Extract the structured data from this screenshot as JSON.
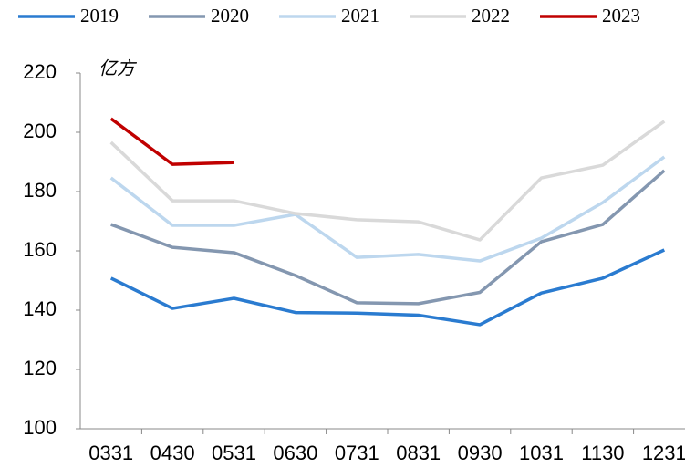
{
  "chart_data": {
    "type": "line",
    "y_label": "亿方",
    "categories": [
      "0331",
      "0430",
      "0531",
      "0630",
      "0731",
      "0831",
      "0930",
      "1031",
      "1130",
      "1231"
    ],
    "series": [
      {
        "name": "2019",
        "color": "#2a7bd0",
        "values": [
          150.8,
          140.6,
          144,
          139.2,
          139,
          138.3,
          135.1,
          145.8,
          150.8,
          160.3
        ]
      },
      {
        "name": "2020",
        "color": "#8497b0",
        "values": [
          168.9,
          161.2,
          159.4,
          151.7,
          142.5,
          142.2,
          146,
          163.1,
          168.9,
          187.1
        ]
      },
      {
        "name": "2021",
        "color": "#bdd7ee",
        "values": [
          184.6,
          168.6,
          168.6,
          172.3,
          157.8,
          158.8,
          156.6,
          164.3,
          176.3,
          191.7
        ]
      },
      {
        "name": "2022",
        "color": "#d9d9d9",
        "values": [
          196.6,
          176.9,
          176.9,
          172.6,
          170.5,
          169.8,
          163.7,
          184.6,
          188.9,
          203.7
        ]
      },
      {
        "name": "2023",
        "color": "#c00000",
        "values": [
          204.6,
          189.2,
          189.8,
          null,
          null,
          null,
          null,
          null,
          null,
          null
        ]
      }
    ],
    "ylim": [
      100,
      220
    ],
    "yticks": [
      100,
      120,
      140,
      160,
      180,
      200,
      220
    ],
    "grid": false
  }
}
